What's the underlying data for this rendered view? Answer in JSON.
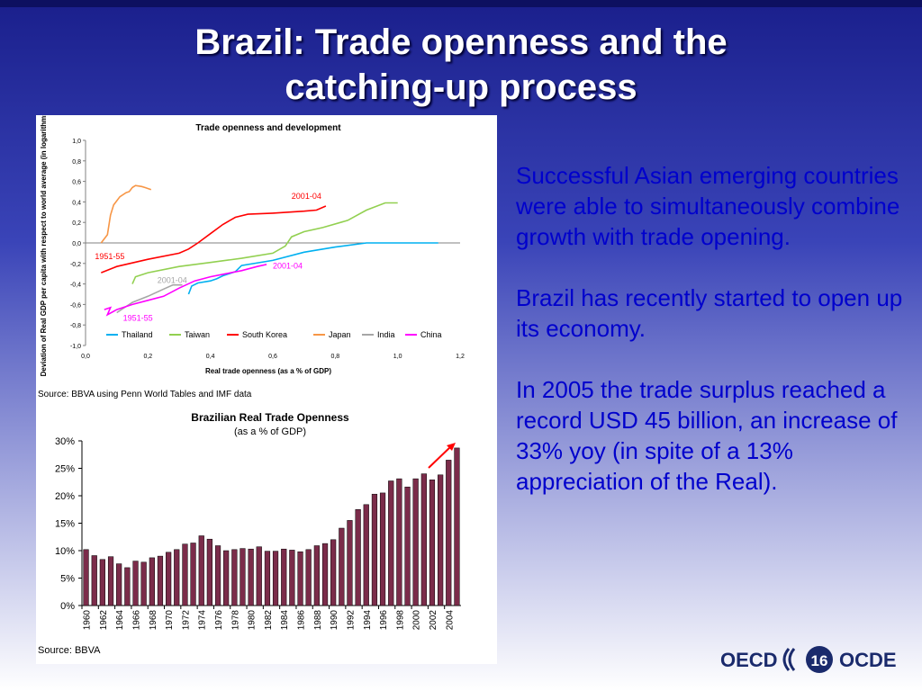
{
  "slide": {
    "title_line1": "Brazil: Trade openness and the",
    "title_line2": "catching-up process",
    "bullets": [
      "Successful Asian emerging countries were able to simultaneously combine growth with trade opening.",
      "Brazil has recently started to open up its economy.",
      "In 2005 the trade surplus reached a record USD 45 billion, an increase of 33% yoy (in spite of a 13% appreciation of the Real)."
    ],
    "footer": {
      "left": "OECD",
      "page": "16",
      "right": "OCDE"
    }
  },
  "chart_data": [
    {
      "type": "line",
      "title": "Trade openness and development",
      "xlabel": "Real trade openness (as a % of GDP)",
      "ylabel": "Deviation of Real GDP per capita with respect to world average (in logarithms)",
      "xlim": [
        0.0,
        1.2
      ],
      "ylim": [
        -1.0,
        1.0
      ],
      "x_ticks": [
        "0,0",
        "0,2",
        "0,4",
        "0,6",
        "0,8",
        "1,0",
        "1,2"
      ],
      "y_ticks": [
        "1,0",
        "0,8",
        "0,6",
        "0,4",
        "0,2",
        "0,0",
        "-0,2",
        "-0,4",
        "-0,6",
        "-0,8",
        "-1,0"
      ],
      "legend_position": "bottom-inside",
      "source": "Source: BBVA using Penn World Tables and IMF data",
      "series": [
        {
          "name": "Thailand",
          "color": "#00b0f0",
          "points": [
            [
              0.33,
              -0.5
            ],
            [
              0.34,
              -0.42
            ],
            [
              0.36,
              -0.39
            ],
            [
              0.4,
              -0.37
            ],
            [
              0.42,
              -0.35
            ],
            [
              0.44,
              -0.32
            ],
            [
              0.48,
              -0.28
            ],
            [
              0.5,
              -0.22
            ],
            [
              0.6,
              -0.17
            ],
            [
              0.7,
              -0.09
            ],
            [
              0.8,
              -0.04
            ],
            [
              0.9,
              0.0
            ],
            [
              1.0,
              0.0
            ],
            [
              1.1,
              0.0
            ],
            [
              1.13,
              0.0
            ]
          ]
        },
        {
          "name": "Taiwan",
          "color": "#92d050",
          "points": [
            [
              0.15,
              -0.4
            ],
            [
              0.16,
              -0.33
            ],
            [
              0.2,
              -0.29
            ],
            [
              0.3,
              -0.23
            ],
            [
              0.4,
              -0.19
            ],
            [
              0.5,
              -0.15
            ],
            [
              0.6,
              -0.1
            ],
            [
              0.64,
              -0.03
            ],
            [
              0.66,
              0.06
            ],
            [
              0.7,
              0.11
            ],
            [
              0.76,
              0.15
            ],
            [
              0.84,
              0.22
            ],
            [
              0.9,
              0.32
            ],
            [
              0.96,
              0.39
            ],
            [
              1.0,
              0.39
            ]
          ]
        },
        {
          "name": "South Korea",
          "color": "#ff0000",
          "points": [
            [
              0.05,
              -0.29
            ],
            [
              0.1,
              -0.23
            ],
            [
              0.2,
              -0.16
            ],
            [
              0.3,
              -0.1
            ],
            [
              0.33,
              -0.06
            ],
            [
              0.36,
              0.0
            ],
            [
              0.4,
              0.09
            ],
            [
              0.44,
              0.18
            ],
            [
              0.48,
              0.25
            ],
            [
              0.52,
              0.28
            ],
            [
              0.6,
              0.29
            ],
            [
              0.7,
              0.31
            ],
            [
              0.74,
              0.32
            ],
            [
              0.77,
              0.36
            ]
          ],
          "labels": [
            {
              "text": "1951-55",
              "at": [
                0.03,
                -0.16
              ]
            },
            {
              "text": "2001-04",
              "at": [
                0.66,
                0.43
              ]
            }
          ]
        },
        {
          "name": "Japan",
          "color": "#f79646",
          "points": [
            [
              0.05,
              0.0
            ],
            [
              0.07,
              0.08
            ],
            [
              0.08,
              0.27
            ],
            [
              0.09,
              0.37
            ],
            [
              0.11,
              0.45
            ],
            [
              0.13,
              0.49
            ],
            [
              0.14,
              0.5
            ],
            [
              0.15,
              0.54
            ],
            [
              0.16,
              0.56
            ],
            [
              0.18,
              0.55
            ],
            [
              0.19,
              0.54
            ],
            [
              0.21,
              0.52
            ]
          ]
        },
        {
          "name": "India",
          "color": "#a6a6a6",
          "points": [
            [
              0.1,
              -0.68
            ],
            [
              0.15,
              -0.58
            ],
            [
              0.2,
              -0.52
            ],
            [
              0.25,
              -0.45
            ],
            [
              0.28,
              -0.41
            ],
            [
              0.31,
              -0.41
            ]
          ],
          "labels": [
            {
              "text": "2001-04",
              "at": [
                0.23,
                -0.39
              ]
            }
          ]
        },
        {
          "name": "China",
          "color": "#ff00ff",
          "points": [
            [
              0.06,
              -0.65
            ],
            [
              0.08,
              -0.63
            ],
            [
              0.07,
              -0.7
            ],
            [
              0.1,
              -0.65
            ],
            [
              0.15,
              -0.6
            ],
            [
              0.2,
              -0.56
            ],
            [
              0.25,
              -0.52
            ],
            [
              0.3,
              -0.44
            ],
            [
              0.35,
              -0.37
            ],
            [
              0.4,
              -0.33
            ],
            [
              0.45,
              -0.3
            ],
            [
              0.5,
              -0.27
            ],
            [
              0.55,
              -0.23
            ],
            [
              0.58,
              -0.21
            ]
          ],
          "labels": [
            {
              "text": "1951-55",
              "at": [
                0.12,
                -0.76
              ]
            },
            {
              "text": "2001-04",
              "at": [
                0.6,
                -0.25
              ]
            }
          ]
        }
      ]
    },
    {
      "type": "bar",
      "title": "Brazilian Real Trade Openness",
      "subtitle": "(as a % of GDP)",
      "ylim": [
        0,
        30
      ],
      "y_ticks": [
        "30%",
        "25%",
        "20%",
        "15%",
        "10%",
        "5%",
        "0%"
      ],
      "source": "Source: BBVA",
      "bar_color": "#7b2c4a",
      "categories": [
        "1960",
        "1961",
        "1962",
        "1963",
        "1964",
        "1965",
        "1966",
        "1967",
        "1968",
        "1969",
        "1970",
        "1971",
        "1972",
        "1973",
        "1974",
        "1975",
        "1976",
        "1977",
        "1978",
        "1979",
        "1980",
        "1981",
        "1982",
        "1983",
        "1984",
        "1985",
        "1986",
        "1987",
        "1988",
        "1989",
        "1990",
        "1991",
        "1992",
        "1993",
        "1994",
        "1995",
        "1996",
        "1997",
        "1998",
        "1999",
        "2000",
        "2001",
        "2002",
        "2003",
        "2004",
        "2005"
      ],
      "x_tick_labels": [
        "1960",
        "1962",
        "1964",
        "1966",
        "1968",
        "1970",
        "1972",
        "1974",
        "1976",
        "1978",
        "1980",
        "1982",
        "1984",
        "1986",
        "1988",
        "1990",
        "1992",
        "1994",
        "1996",
        "1998",
        "2000",
        "2002",
        "2004"
      ],
      "values": [
        10.2,
        9.1,
        8.4,
        8.9,
        7.6,
        6.9,
        8.1,
        7.9,
        8.7,
        9.0,
        9.7,
        10.2,
        11.2,
        11.4,
        12.7,
        12.1,
        10.9,
        10.0,
        10.2,
        10.4,
        10.3,
        10.7,
        9.9,
        9.9,
        10.3,
        10.1,
        9.8,
        10.2,
        10.9,
        11.3,
        12.0,
        14.1,
        15.5,
        17.5,
        18.4,
        20.3,
        20.5,
        22.7,
        23.1,
        21.6,
        23.1,
        24.0,
        22.9,
        23.8,
        26.5,
        28.7
      ]
    }
  ]
}
